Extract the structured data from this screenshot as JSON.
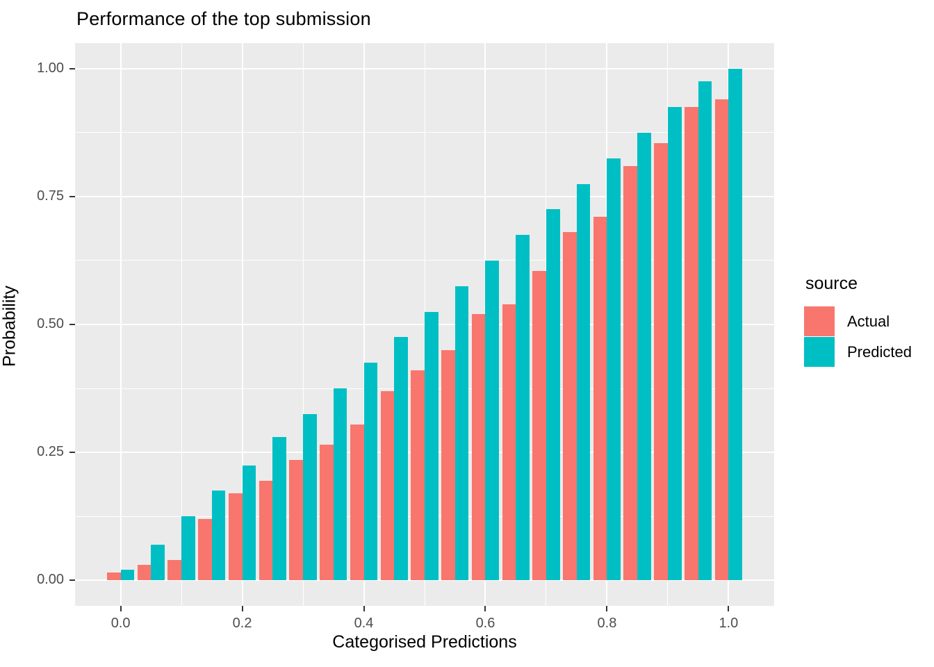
{
  "title": "Performance of the top submission",
  "chart_data": {
    "type": "bar",
    "title": "Performance of the top submission",
    "xlabel": "Categorised Predictions",
    "ylabel": "Probability",
    "grid": "on",
    "panel_background": "#EBEBEB",
    "gridline_color": "#ffffff",
    "legend_position": "right",
    "legend_title": "source",
    "categories": [
      0.0,
      0.05,
      0.1,
      0.15,
      0.2,
      0.25,
      0.3,
      0.35,
      0.4,
      0.45,
      0.5,
      0.55,
      0.6,
      0.65,
      0.7,
      0.75,
      0.8,
      0.85,
      0.9,
      0.95,
      1.0
    ],
    "series": [
      {
        "name": "Actual",
        "color": "#F8766D",
        "values": [
          0.015,
          0.03,
          0.04,
          0.12,
          0.17,
          0.195,
          0.235,
          0.265,
          0.305,
          0.37,
          0.41,
          0.45,
          0.52,
          0.54,
          0.605,
          0.68,
          0.71,
          0.81,
          0.855,
          0.925,
          0.94
        ]
      },
      {
        "name": "Predicted",
        "color": "#00BFC4",
        "values": [
          0.02,
          0.07,
          0.125,
          0.175,
          0.225,
          0.28,
          0.325,
          0.375,
          0.425,
          0.475,
          0.525,
          0.575,
          0.625,
          0.675,
          0.725,
          0.775,
          0.825,
          0.875,
          0.925,
          0.975,
          1.0
        ]
      }
    ],
    "xlim": [
      -0.075,
      1.075
    ],
    "ylim": [
      -0.05,
      1.05
    ],
    "bar_width": 0.0225,
    "x_ticks": {
      "major_values": [
        0.0,
        0.2,
        0.4,
        0.6,
        0.8,
        1.0
      ],
      "major_labels": [
        "0.0",
        "0.2",
        "0.4",
        "0.6",
        "0.8",
        "1.0"
      ],
      "minor_values": [
        0.1,
        0.3,
        0.5,
        0.7,
        0.9
      ]
    },
    "y_ticks": {
      "major_values": [
        0.0,
        0.25,
        0.5,
        0.75,
        1.0
      ],
      "major_labels": [
        "0.00",
        "0.25",
        "0.50",
        "0.75",
        "1.00"
      ],
      "minor_values": [
        0.125,
        0.375,
        0.625,
        0.875
      ]
    }
  },
  "legend": {
    "title": "source",
    "items": [
      {
        "label": "Actual",
        "color": "#F8766D"
      },
      {
        "label": "Predicted",
        "color": "#00BFC4"
      }
    ]
  }
}
